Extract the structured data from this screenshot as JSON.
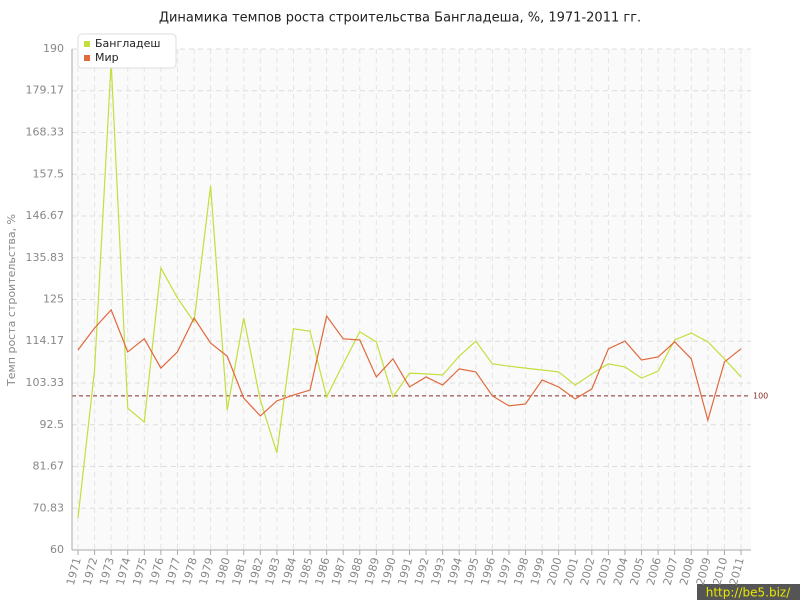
{
  "chart_data": {
    "type": "line",
    "title": "Динамика темпов роста строительства Бангладеша, %, 1971-2011 гг.",
    "y_label": "Темп роста строительства, %",
    "categories": [
      "1971",
      "1972",
      "1973",
      "1974",
      "1975",
      "1976",
      "1977",
      "1978",
      "1979",
      "1980",
      "1981",
      "1982",
      "1983",
      "1984",
      "1985",
      "1986",
      "1987",
      "1988",
      "1989",
      "1990",
      "1991",
      "1992",
      "1993",
      "1994",
      "1995",
      "1996",
      "1997",
      "1998",
      "1999",
      "2000",
      "2001",
      "2002",
      "2003",
      "2004",
      "2005",
      "2006",
      "2007",
      "2008",
      "2009",
      "2010",
      "2011"
    ],
    "series": [
      {
        "name": "Бангладеш",
        "color": "#c3df3c",
        "values": [
          68.3,
          106.7,
          186.6,
          96.8,
          93.2,
          133.2,
          125.4,
          119.2,
          154.5,
          96.3,
          120.2,
          98.9,
          85.2,
          117.4,
          116.8,
          99.7,
          108.3,
          116.6,
          114,
          99.7,
          105.9,
          105.7,
          105.4,
          110.3,
          114.2,
          108.3,
          107.7,
          107.2,
          106.7,
          106.2,
          102.8,
          105.7,
          108.3,
          107.5,
          104.6,
          106.4,
          114.5,
          116.3,
          114,
          109.6,
          104.9
        ]
      },
      {
        "name": "Мир",
        "color": "#e0693c",
        "values": [
          111.9,
          117.6,
          122.3,
          111.4,
          114.8,
          107.2,
          111.4,
          120.2,
          113.7,
          110.3,
          99.4,
          94.8,
          98.7,
          100.2,
          101.5,
          120.7,
          114.8,
          114.5,
          104.9,
          109.6,
          102.3,
          104.9,
          102.8,
          107,
          106.2,
          100,
          97.4,
          97.9,
          104.1,
          102.3,
          99.2,
          101.8,
          112.2,
          114.2,
          109.3,
          110.1,
          114,
          109.6,
          93.7,
          108.8,
          112.2
        ]
      }
    ],
    "ylim": [
      60,
      190
    ],
    "yticks": [
      60,
      70.83,
      81.67,
      92.5,
      103.33,
      114.17,
      125,
      135.83,
      146.67,
      157.5,
      168.33,
      179.17,
      190
    ],
    "reference_line": 100,
    "reference_color": "#8b2a2a",
    "grid": true,
    "legend": "top-left",
    "watermark": "http://be5.biz/"
  }
}
